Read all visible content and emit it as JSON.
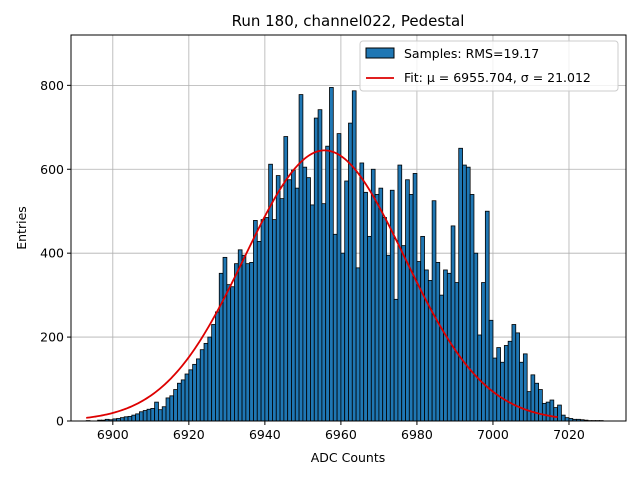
{
  "chart_data": {
    "type": "bar",
    "title": "Run 180, channel022, Pedestal",
    "xlabel": "ADC Counts",
    "ylabel": "Entries",
    "xlim": [
      6889,
      6935
    ],
    "xlim_note": "",
    "x_range": [
      6889,
      7035
    ],
    "y_range": [
      0,
      920
    ],
    "x_ticks": [
      6900,
      6920,
      6940,
      6960,
      6980,
      7000,
      7020
    ],
    "x_tick_labels": [
      "6900",
      "6920",
      "6940",
      "6960",
      "6980",
      "7000",
      "7020"
    ],
    "y_ticks": [
      0,
      200,
      400,
      600,
      800
    ],
    "y_tick_labels": [
      "0",
      "200",
      "400",
      "600",
      "800"
    ],
    "grid": true,
    "legend_position": "top-right",
    "legend": [
      {
        "label": "Samples: RMS=19.17",
        "kind": "bar"
      },
      {
        "label": "Fit: μ = 6955.704, σ = 21.012",
        "kind": "line"
      }
    ],
    "bar_color": "#1f77b4",
    "bar_edge_color": "#000000",
    "fit_color": "#dd0000",
    "bin_start": 6893,
    "bin_width": 1,
    "histogram_values": [
      1,
      0,
      0,
      2,
      2,
      4,
      3,
      5,
      6,
      8,
      10,
      11,
      14,
      17,
      22,
      25,
      28,
      30,
      45,
      27,
      34,
      55,
      60,
      75,
      90,
      98,
      112,
      122,
      135,
      148,
      170,
      185,
      200,
      230,
      260,
      352,
      390,
      325,
      320,
      375,
      408,
      395,
      375,
      378,
      478,
      428,
      480,
      485,
      612,
      480,
      585,
      530,
      678,
      575,
      598,
      555,
      778,
      605,
      580,
      515,
      722,
      742,
      518,
      655,
      795,
      445,
      685,
      400,
      572,
      710,
      787,
      365,
      615,
      545,
      440,
      600,
      540,
      555,
      485,
      395,
      550,
      290,
      610,
      418,
      575,
      540,
      590,
      380,
      440,
      360,
      335,
      525,
      378,
      300,
      360,
      352,
      465,
      330,
      650,
      610,
      605,
      540,
      400,
      205,
      330,
      500,
      240,
      150,
      175,
      140,
      180,
      190,
      230,
      210,
      140,
      160,
      70,
      110,
      90,
      75,
      42,
      45,
      50,
      32,
      38,
      14,
      8,
      6,
      4,
      4,
      3,
      2,
      1,
      1,
      1,
      1
    ],
    "fit": {
      "mu": 6955.704,
      "sigma": 21.012,
      "amplitude": 645,
      "x_from": 6893,
      "x_to": 7017
    }
  }
}
